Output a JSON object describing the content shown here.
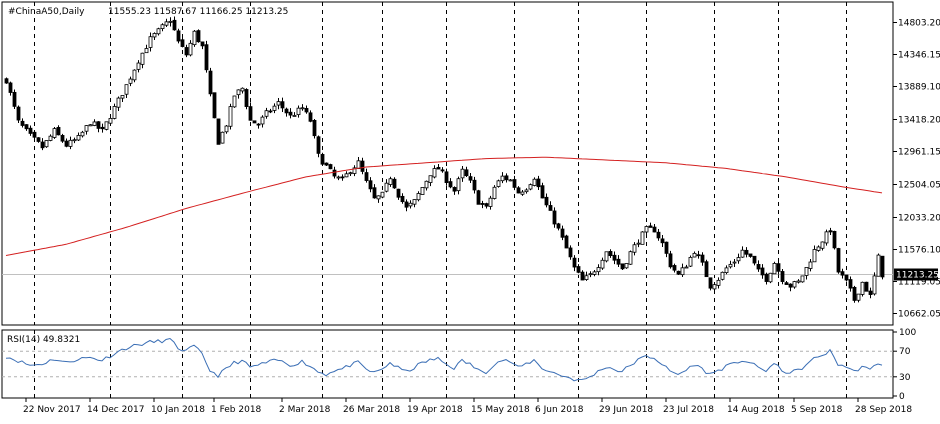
{
  "header": {
    "symbol": "#ChinaA50,Daily",
    "ohlc": "11555.23 11587.67 11166.25 11213.25"
  },
  "chart_data": {
    "type": "candlestick",
    "price_axis": {
      "ticks": [
        14803.2,
        14346.15,
        13889.1,
        13418.2,
        12961.15,
        12504.05,
        12033.2,
        11576.1,
        11119.05,
        10662.05
      ],
      "ylim": [
        10520,
        15060
      ],
      "current_price_label": "11213.25",
      "current_price": 11213.25
    },
    "time_axis": {
      "labels": [
        "22 Nov 2017",
        "14 Dec 2017",
        "10 Jan 2018",
        "1 Feb 2018",
        "2 Mar 2018",
        "26 Mar 2018",
        "19 Apr 2018",
        "15 May 2018",
        "6 Jun 2018",
        "29 Jun 2018",
        "23 Jul 2018",
        "14 Aug 2018",
        "5 Sep 2018",
        "28 Sep 2018"
      ],
      "label_bars": [
        5,
        21,
        37,
        52,
        69,
        85,
        101,
        117,
        133,
        149,
        165,
        181,
        197,
        213
      ],
      "grid_bars": [
        7,
        26,
        44,
        61,
        79,
        94,
        110,
        127,
        143,
        160,
        177,
        193,
        210
      ]
    },
    "ma_series": {
      "name": "",
      "color": "#d42020",
      "points": [
        [
          0,
          11480
        ],
        [
          15,
          11640
        ],
        [
          30,
          11880
        ],
        [
          45,
          12150
        ],
        [
          60,
          12380
        ],
        [
          75,
          12600
        ],
        [
          90,
          12740
        ],
        [
          105,
          12800
        ],
        [
          120,
          12860
        ],
        [
          135,
          12880
        ],
        [
          150,
          12840
        ],
        [
          165,
          12800
        ],
        [
          180,
          12720
        ],
        [
          195,
          12600
        ],
        [
          210,
          12450
        ],
        [
          225,
          12320
        ]
      ]
    },
    "candle_anchors": [
      [
        0,
        13980
      ],
      [
        3,
        13380
      ],
      [
        6,
        13180
      ],
      [
        9,
        13020
      ],
      [
        12,
        13250
      ],
      [
        15,
        13050
      ],
      [
        18,
        13150
      ],
      [
        21,
        13380
      ],
      [
        24,
        13250
      ],
      [
        27,
        13580
      ],
      [
        30,
        13900
      ],
      [
        33,
        14260
      ],
      [
        36,
        14560
      ],
      [
        39,
        14730
      ],
      [
        41,
        14840
      ],
      [
        43,
        14520
      ],
      [
        45,
        14340
      ],
      [
        47,
        14650
      ],
      [
        49,
        14450
      ],
      [
        51,
        13740
      ],
      [
        53,
        13100
      ],
      [
        55,
        13350
      ],
      [
        57,
        13760
      ],
      [
        59,
        13860
      ],
      [
        61,
        13400
      ],
      [
        63,
        13350
      ],
      [
        65,
        13500
      ],
      [
        68,
        13650
      ],
      [
        71,
        13460
      ],
      [
        74,
        13580
      ],
      [
        76,
        13400
      ],
      [
        78,
        12900
      ],
      [
        80,
        12750
      ],
      [
        82,
        12600
      ],
      [
        84,
        12550
      ],
      [
        86,
        12700
      ],
      [
        88,
        12800
      ],
      [
        90,
        12520
      ],
      [
        92,
        12280
      ],
      [
        94,
        12340
      ],
      [
        96,
        12600
      ],
      [
        98,
        12350
      ],
      [
        100,
        12150
      ],
      [
        102,
        12250
      ],
      [
        104,
        12450
      ],
      [
        106,
        12650
      ],
      [
        108,
        12720
      ],
      [
        110,
        12560
      ],
      [
        112,
        12400
      ],
      [
        114,
        12680
      ],
      [
        116,
        12520
      ],
      [
        118,
        12250
      ],
      [
        120,
        12150
      ],
      [
        122,
        12450
      ],
      [
        124,
        12600
      ],
      [
        126,
        12550
      ],
      [
        128,
        12380
      ],
      [
        130,
        12450
      ],
      [
        132,
        12600
      ],
      [
        134,
        12300
      ],
      [
        136,
        12080
      ],
      [
        138,
        11850
      ],
      [
        140,
        11580
      ],
      [
        142,
        11300
      ],
      [
        144,
        11120
      ],
      [
        146,
        11200
      ],
      [
        148,
        11350
      ],
      [
        150,
        11550
      ],
      [
        152,
        11420
      ],
      [
        154,
        11300
      ],
      [
        156,
        11520
      ],
      [
        158,
        11700
      ],
      [
        160,
        11850
      ],
      [
        162,
        11850
      ],
      [
        164,
        11650
      ],
      [
        166,
        11350
      ],
      [
        168,
        11200
      ],
      [
        170,
        11350
      ],
      [
        172,
        11550
      ],
      [
        174,
        11350
      ],
      [
        176,
        11050
      ],
      [
        178,
        11150
      ],
      [
        180,
        11300
      ],
      [
        182,
        11400
      ],
      [
        184,
        11550
      ],
      [
        186,
        11450
      ],
      [
        188,
        11250
      ],
      [
        190,
        11150
      ],
      [
        192,
        11380
      ],
      [
        194,
        11150
      ],
      [
        196,
        11050
      ],
      [
        198,
        11100
      ],
      [
        200,
        11300
      ],
      [
        202,
        11550
      ],
      [
        204,
        11700
      ],
      [
        206,
        11850
      ],
      [
        208,
        11250
      ],
      [
        210,
        11100
      ],
      [
        212,
        10850
      ],
      [
        214,
        11100
      ],
      [
        216,
        10900
      ],
      [
        218,
        11450
      ],
      [
        219,
        11213
      ]
    ],
    "rsi": {
      "label": "RSI(14) 49.8321",
      "ticks": [
        100,
        70,
        30,
        0
      ],
      "levels": [
        70,
        30
      ],
      "color": "#3a6eb5",
      "anchors": [
        [
          0,
          62
        ],
        [
          3,
          55
        ],
        [
          6,
          48
        ],
        [
          9,
          50
        ],
        [
          12,
          58
        ],
        [
          15,
          52
        ],
        [
          18,
          58
        ],
        [
          21,
          60
        ],
        [
          24,
          56
        ],
        [
          27,
          66
        ],
        [
          30,
          75
        ],
        [
          33,
          80
        ],
        [
          36,
          84
        ],
        [
          39,
          86
        ],
        [
          41,
          88
        ],
        [
          43,
          75
        ],
        [
          45,
          70
        ],
        [
          47,
          78
        ],
        [
          49,
          65
        ],
        [
          51,
          40
        ],
        [
          53,
          32
        ],
        [
          55,
          42
        ],
        [
          57,
          52
        ],
        [
          59,
          55
        ],
        [
          61,
          45
        ],
        [
          63,
          48
        ],
        [
          65,
          52
        ],
        [
          68,
          56
        ],
        [
          71,
          48
        ],
        [
          74,
          54
        ],
        [
          76,
          47
        ],
        [
          78,
          38
        ],
        [
          80,
          34
        ],
        [
          82,
          40
        ],
        [
          84,
          42
        ],
        [
          86,
          48
        ],
        [
          88,
          52
        ],
        [
          90,
          42
        ],
        [
          92,
          36
        ],
        [
          94,
          42
        ],
        [
          96,
          52
        ],
        [
          98,
          44
        ],
        [
          100,
          38
        ],
        [
          102,
          44
        ],
        [
          104,
          52
        ],
        [
          106,
          56
        ],
        [
          108,
          58
        ],
        [
          110,
          50
        ],
        [
          112,
          44
        ],
        [
          114,
          55
        ],
        [
          116,
          50
        ],
        [
          118,
          40
        ],
        [
          120,
          38
        ],
        [
          122,
          50
        ],
        [
          124,
          56
        ],
        [
          126,
          54
        ],
        [
          128,
          44
        ],
        [
          130,
          50
        ],
        [
          132,
          56
        ],
        [
          134,
          44
        ],
        [
          136,
          38
        ],
        [
          138,
          34
        ],
        [
          140,
          30
        ],
        [
          142,
          26
        ],
        [
          144,
          24
        ],
        [
          146,
          30
        ],
        [
          148,
          38
        ],
        [
          150,
          46
        ],
        [
          152,
          42
        ],
        [
          154,
          38
        ],
        [
          156,
          48
        ],
        [
          158,
          56
        ],
        [
          160,
          62
        ],
        [
          162,
          60
        ],
        [
          164,
          50
        ],
        [
          166,
          38
        ],
        [
          168,
          34
        ],
        [
          170,
          40
        ],
        [
          172,
          50
        ],
        [
          174,
          42
        ],
        [
          176,
          34
        ],
        [
          178,
          40
        ],
        [
          180,
          46
        ],
        [
          182,
          50
        ],
        [
          184,
          56
        ],
        [
          186,
          52
        ],
        [
          188,
          44
        ],
        [
          190,
          40
        ],
        [
          192,
          50
        ],
        [
          194,
          40
        ],
        [
          196,
          36
        ],
        [
          198,
          40
        ],
        [
          200,
          48
        ],
        [
          202,
          58
        ],
        [
          204,
          64
        ],
        [
          206,
          70
        ],
        [
          208,
          50
        ],
        [
          210,
          46
        ],
        [
          212,
          38
        ],
        [
          214,
          46
        ],
        [
          216,
          40
        ],
        [
          218,
          52
        ],
        [
          219,
          50
        ]
      ]
    }
  }
}
